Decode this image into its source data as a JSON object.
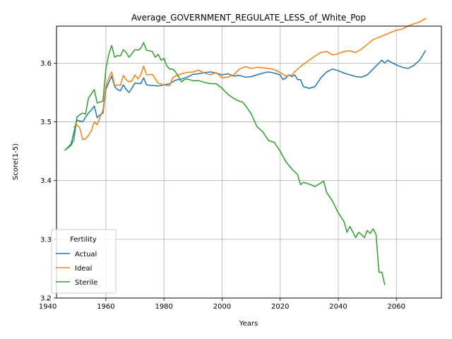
{
  "chart_data": {
    "type": "line",
    "title": "Average_GOVERNMENT_REGULATE_LESS_of_White_Pop",
    "xlabel": "Years",
    "ylabel": "Score(1-5)",
    "xlim": [
      1943,
      2075.5
    ],
    "ylim": [
      3.2,
      3.663
    ],
    "xticks": [
      1940,
      1960,
      1980,
      2000,
      2020,
      2040,
      2060
    ],
    "yticks": [
      3.2,
      3.3,
      3.4,
      3.5,
      3.6
    ],
    "grid": true,
    "legend": {
      "title": "Fertility",
      "placement": "lower-left"
    },
    "series": [
      {
        "name": "Actual",
        "color": "#1f77b4",
        "points": [
          [
            1946,
            3.452
          ],
          [
            1948,
            3.462
          ],
          [
            1950,
            3.503
          ],
          [
            1952,
            3.5
          ],
          [
            1954,
            3.515
          ],
          [
            1955,
            3.52
          ],
          [
            1956,
            3.527
          ],
          [
            1957,
            3.507
          ],
          [
            1958,
            3.512
          ],
          [
            1959,
            3.515
          ],
          [
            1960,
            3.555
          ],
          [
            1961,
            3.567
          ],
          [
            1962,
            3.578
          ],
          [
            1963,
            3.56
          ],
          [
            1964,
            3.555
          ],
          [
            1965,
            3.553
          ],
          [
            1966,
            3.563
          ],
          [
            1967,
            3.555
          ],
          [
            1968,
            3.55
          ],
          [
            1970,
            3.566
          ],
          [
            1972,
            3.565
          ],
          [
            1973,
            3.575
          ],
          [
            1974,
            3.563
          ],
          [
            1976,
            3.562
          ],
          [
            1978,
            3.561
          ],
          [
            1980,
            3.563
          ],
          [
            1982,
            3.565
          ],
          [
            1984,
            3.571
          ],
          [
            1986,
            3.573
          ],
          [
            1988,
            3.576
          ],
          [
            1990,
            3.581
          ],
          [
            1992,
            3.582
          ],
          [
            1994,
            3.584
          ],
          [
            1996,
            3.585
          ],
          [
            1998,
            3.583
          ],
          [
            2000,
            3.58
          ],
          [
            2002,
            3.582
          ],
          [
            2004,
            3.578
          ],
          [
            2006,
            3.579
          ],
          [
            2008,
            3.576
          ],
          [
            2010,
            3.577
          ],
          [
            2012,
            3.58
          ],
          [
            2014,
            3.583
          ],
          [
            2016,
            3.585
          ],
          [
            2018,
            3.583
          ],
          [
            2020,
            3.58
          ],
          [
            2021,
            3.572
          ],
          [
            2022,
            3.575
          ],
          [
            2023,
            3.58
          ],
          [
            2024,
            3.577
          ],
          [
            2025,
            3.58
          ],
          [
            2026,
            3.572
          ],
          [
            2027,
            3.572
          ],
          [
            2028,
            3.56
          ],
          [
            2030,
            3.557
          ],
          [
            2032,
            3.56
          ],
          [
            2034,
            3.575
          ],
          [
            2036,
            3.585
          ],
          [
            2038,
            3.59
          ],
          [
            2040,
            3.587
          ],
          [
            2042,
            3.583
          ],
          [
            2044,
            3.58
          ],
          [
            2046,
            3.577
          ],
          [
            2048,
            3.576
          ],
          [
            2050,
            3.58
          ],
          [
            2052,
            3.59
          ],
          [
            2054,
            3.6
          ],
          [
            2055,
            3.605
          ],
          [
            2056,
            3.6
          ],
          [
            2057,
            3.605
          ],
          [
            2058,
            3.602
          ],
          [
            2060,
            3.597
          ],
          [
            2062,
            3.593
          ],
          [
            2064,
            3.591
          ],
          [
            2066,
            3.596
          ],
          [
            2068,
            3.605
          ],
          [
            2070,
            3.621
          ]
        ]
      },
      {
        "name": "Ideal",
        "color": "#ff7f0e",
        "points": [
          [
            1949,
            3.491
          ],
          [
            1950,
            3.495
          ],
          [
            1951,
            3.49
          ],
          [
            1952,
            3.47
          ],
          [
            1953,
            3.471
          ],
          [
            1954,
            3.477
          ],
          [
            1955,
            3.485
          ],
          [
            1956,
            3.5
          ],
          [
            1957,
            3.495
          ],
          [
            1958,
            3.508
          ],
          [
            1959,
            3.52
          ],
          [
            1960,
            3.56
          ],
          [
            1961,
            3.575
          ],
          [
            1962,
            3.585
          ],
          [
            1963,
            3.562
          ],
          [
            1964,
            3.563
          ],
          [
            1965,
            3.562
          ],
          [
            1966,
            3.579
          ],
          [
            1967,
            3.572
          ],
          [
            1968,
            3.568
          ],
          [
            1969,
            3.57
          ],
          [
            1970,
            3.58
          ],
          [
            1971,
            3.573
          ],
          [
            1972,
            3.58
          ],
          [
            1973,
            3.595
          ],
          [
            1974,
            3.58
          ],
          [
            1976,
            3.581
          ],
          [
            1978,
            3.566
          ],
          [
            1980,
            3.563
          ],
          [
            1981,
            3.562
          ],
          [
            1982,
            3.562
          ],
          [
            1983,
            3.575
          ],
          [
            1984,
            3.578
          ],
          [
            1986,
            3.582
          ],
          [
            1988,
            3.584
          ],
          [
            1990,
            3.585
          ],
          [
            1992,
            3.588
          ],
          [
            1994,
            3.583
          ],
          [
            1996,
            3.58
          ],
          [
            1998,
            3.584
          ],
          [
            2000,
            3.575
          ],
          [
            2002,
            3.576
          ],
          [
            2004,
            3.58
          ],
          [
            2006,
            3.59
          ],
          [
            2008,
            3.594
          ],
          [
            2010,
            3.591
          ],
          [
            2012,
            3.593
          ],
          [
            2014,
            3.592
          ],
          [
            2016,
            3.591
          ],
          [
            2018,
            3.589
          ],
          [
            2020,
            3.584
          ],
          [
            2022,
            3.578
          ],
          [
            2024,
            3.58
          ],
          [
            2026,
            3.59
          ],
          [
            2028,
            3.598
          ],
          [
            2030,
            3.605
          ],
          [
            2032,
            3.612
          ],
          [
            2034,
            3.618
          ],
          [
            2036,
            3.62
          ],
          [
            2038,
            3.614
          ],
          [
            2040,
            3.616
          ],
          [
            2042,
            3.62
          ],
          [
            2044,
            3.621
          ],
          [
            2046,
            3.618
          ],
          [
            2048,
            3.624
          ],
          [
            2050,
            3.632
          ],
          [
            2052,
            3.64
          ],
          [
            2054,
            3.644
          ],
          [
            2056,
            3.648
          ],
          [
            2058,
            3.652
          ],
          [
            2060,
            3.656
          ],
          [
            2062,
            3.658
          ],
          [
            2064,
            3.663
          ],
          [
            2066,
            3.667
          ],
          [
            2068,
            3.67
          ],
          [
            2070,
            3.676
          ]
        ]
      },
      {
        "name": "Sterile",
        "color": "#2ca02c",
        "points": [
          [
            1946,
            3.452
          ],
          [
            1948,
            3.46
          ],
          [
            1949,
            3.47
          ],
          [
            1950,
            3.508
          ],
          [
            1951,
            3.512
          ],
          [
            1952,
            3.515
          ],
          [
            1953,
            3.513
          ],
          [
            1954,
            3.54
          ],
          [
            1955,
            3.548
          ],
          [
            1956,
            3.555
          ],
          [
            1957,
            3.532
          ],
          [
            1958,
            3.534
          ],
          [
            1959,
            3.535
          ],
          [
            1960,
            3.59
          ],
          [
            1961,
            3.615
          ],
          [
            1962,
            3.63
          ],
          [
            1963,
            3.61
          ],
          [
            1964,
            3.613
          ],
          [
            1965,
            3.612
          ],
          [
            1966,
            3.623
          ],
          [
            1967,
            3.618
          ],
          [
            1968,
            3.61
          ],
          [
            1970,
            3.623
          ],
          [
            1971,
            3.622
          ],
          [
            1972,
            3.625
          ],
          [
            1973,
            3.635
          ],
          [
            1974,
            3.622
          ],
          [
            1976,
            3.62
          ],
          [
            1977,
            3.61
          ],
          [
            1978,
            3.615
          ],
          [
            1979,
            3.605
          ],
          [
            1980,
            3.608
          ],
          [
            1981,
            3.595
          ],
          [
            1982,
            3.59
          ],
          [
            1983,
            3.59
          ],
          [
            1984,
            3.585
          ],
          [
            1985,
            3.577
          ],
          [
            1986,
            3.568
          ],
          [
            1987,
            3.572
          ],
          [
            1988,
            3.573
          ],
          [
            1990,
            3.57
          ],
          [
            1992,
            3.57
          ],
          [
            1994,
            3.567
          ],
          [
            1996,
            3.565
          ],
          [
            1998,
            3.565
          ],
          [
            2000,
            3.557
          ],
          [
            2002,
            3.547
          ],
          [
            2004,
            3.54
          ],
          [
            2006,
            3.535
          ],
          [
            2007,
            3.534
          ],
          [
            2008,
            3.528
          ],
          [
            2010,
            3.514
          ],
          [
            2012,
            3.492
          ],
          [
            2014,
            3.483
          ],
          [
            2016,
            3.468
          ],
          [
            2018,
            3.465
          ],
          [
            2020,
            3.45
          ],
          [
            2022,
            3.432
          ],
          [
            2024,
            3.42
          ],
          [
            2026,
            3.41
          ],
          [
            2027,
            3.393
          ],
          [
            2028,
            3.397
          ],
          [
            2030,
            3.394
          ],
          [
            2032,
            3.39
          ],
          [
            2034,
            3.396
          ],
          [
            2035,
            3.399
          ],
          [
            2036,
            3.38
          ],
          [
            2038,
            3.365
          ],
          [
            2040,
            3.345
          ],
          [
            2042,
            3.33
          ],
          [
            2043,
            3.312
          ],
          [
            2044,
            3.322
          ],
          [
            2046,
            3.303
          ],
          [
            2047,
            3.312
          ],
          [
            2048,
            3.308
          ],
          [
            2049,
            3.303
          ],
          [
            2050,
            3.315
          ],
          [
            2051,
            3.31
          ],
          [
            2052,
            3.318
          ],
          [
            2053,
            3.308
          ],
          [
            2054,
            3.244
          ],
          [
            2055,
            3.244
          ],
          [
            2056,
            3.223
          ]
        ]
      }
    ]
  }
}
